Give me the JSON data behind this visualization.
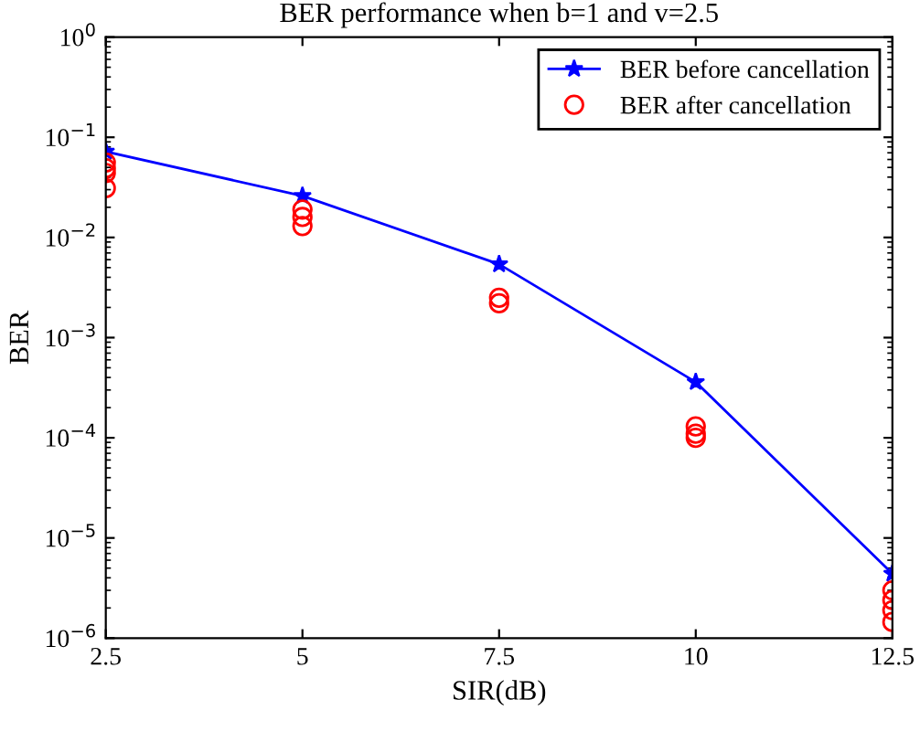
{
  "chart_data": {
    "type": "line",
    "title": "BER performance when b=1 and v=2.5",
    "xlabel": "SIR(dB)",
    "ylabel": "BER",
    "log": "y",
    "xlim": [
      2.5,
      12.5
    ],
    "xticks": [
      2.5,
      5,
      7.5,
      10,
      12.5
    ],
    "ylim": [
      1e-06,
      1
    ],
    "yticks": [
      {
        "value": 1e-06,
        "label": "10$^{−6}$"
      },
      {
        "value": 1e-05,
        "label": "10$^{−5}$"
      },
      {
        "value": 0.0001,
        "label": "10$^{−4}$"
      },
      {
        "value": 0.001,
        "label": "10$^{−3}$"
      },
      {
        "value": 0.01,
        "label": "10$^{−2}$"
      },
      {
        "value": 0.1,
        "label": "10$^{−1}$"
      },
      {
        "value": 1,
        "label": "10$^{0}$"
      }
    ],
    "legend": "top right",
    "series": [
      {
        "name": "BER before cancellation",
        "color": "#0000ff",
        "marker": "star",
        "line_style": "solid",
        "x": [
          2.5,
          5,
          7.5,
          10,
          12.5
        ],
        "values": [
          0.072,
          0.026,
          0.0054,
          0.00036,
          4.4e-06
        ]
      },
      {
        "name": "BER after cancellation",
        "type": "scatter",
        "color": "#ff0000",
        "marker": "circle",
        "x": [
          2.5,
          2.5,
          2.5,
          2.5,
          5,
          5,
          5,
          7.5,
          7.5,
          10,
          10,
          10,
          12.5,
          12.5,
          12.5,
          12.5
        ],
        "values": [
          0.056,
          0.049,
          0.044,
          0.031,
          0.019,
          0.016,
          0.013,
          0.0025,
          0.0022,
          0.00013,
          0.00011,
          0.0001,
          3e-06,
          2.4e-06,
          1.9e-06,
          1.45e-06
        ]
      }
    ]
  }
}
